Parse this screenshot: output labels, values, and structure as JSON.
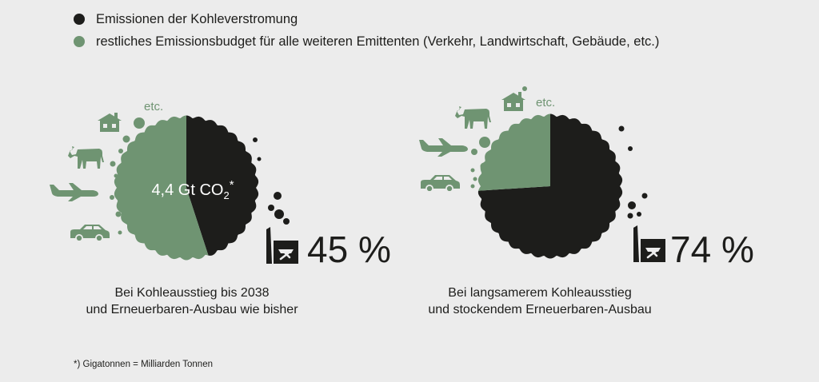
{
  "legend": {
    "coal": "Emissionen der Kohleverstromung",
    "rest": "restliches Emissionsbudget für alle weiteren Emittenten (Verkehr, Landwirtschaft, Gebäude, etc.)"
  },
  "colors": {
    "coal": "#1d1d1b",
    "rest": "#6f9472",
    "text": "#1d1d1b",
    "background": "#ececec"
  },
  "chart_data": [
    {
      "type": "pie",
      "slices": [
        {
          "name": "Emissionen der Kohleverstromung",
          "value": 45
        },
        {
          "name": "restliches Emissionsbudget",
          "value": 55
        }
      ],
      "center_label": {
        "main": "4,4 Gt CO",
        "sub": "2",
        "sup": "*"
      },
      "percent_label": "45 %",
      "etc_label": "etc.",
      "icons": [
        "house-icon",
        "cow-icon",
        "airplane-icon",
        "car-icon",
        "power-plant-icon"
      ],
      "caption": [
        "Bei Kohleausstieg bis 2038",
        "und Erneuerbaren-Ausbau wie bisher"
      ]
    },
    {
      "type": "pie",
      "slices": [
        {
          "name": "Emissionen der Kohleverstromung",
          "value": 74
        },
        {
          "name": "restliches Emissionsbudget",
          "value": 26
        }
      ],
      "percent_label": "74 %",
      "etc_label": "etc.",
      "icons": [
        "house-icon",
        "cow-icon",
        "airplane-icon",
        "car-icon",
        "power-plant-icon"
      ],
      "caption": [
        "Bei langsamerem Kohleausstieg",
        "und stockendem Erneuerbaren-Ausbau"
      ]
    }
  ],
  "footnote": "*) Gigatonnen = Milliarden Tonnen"
}
